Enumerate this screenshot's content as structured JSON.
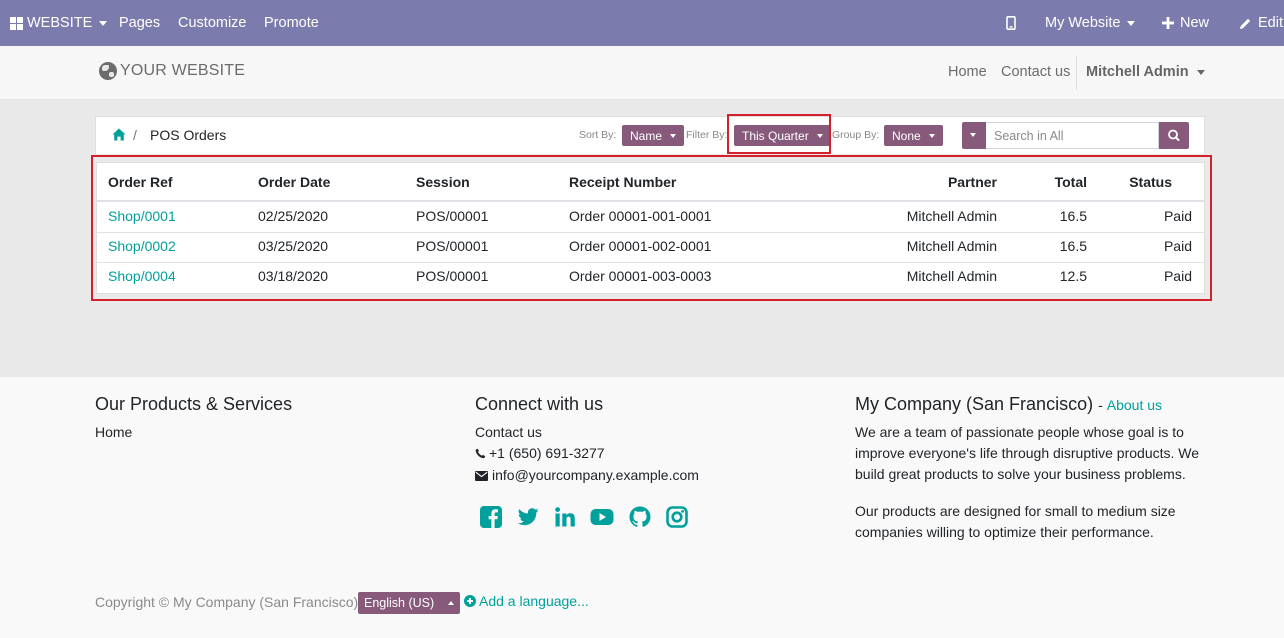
{
  "topbar": {
    "website_label": "WEBSITE",
    "pages": "Pages",
    "customize": "Customize",
    "promote": "Promote",
    "my_website": "My Website",
    "new": "New",
    "edit": "Edit",
    "bg_color": "#7c7bad"
  },
  "header": {
    "logo_text": "YOUR WEBSITE",
    "nav": {
      "home": "Home",
      "contact": "Contact us"
    },
    "user": "Mitchell Admin"
  },
  "controls": {
    "breadcrumb": {
      "current": "POS Orders"
    },
    "sort": {
      "label": "Sort By:",
      "value": "Name"
    },
    "filter": {
      "label": "Filter By:",
      "value": "This Quarter"
    },
    "group": {
      "label": "Group By:",
      "value": "None"
    },
    "search": {
      "placeholder": "Search in All"
    },
    "accent_color": "#875a7b",
    "highlight_color": "#d3202a"
  },
  "table": {
    "columns": [
      "Order Ref",
      "Order Date",
      "Session",
      "Receipt Number",
      "Partner",
      "Total",
      "Status"
    ],
    "rows": [
      [
        "Shop/0001",
        "02/25/2020",
        "POS/00001",
        "Order 00001-001-0001",
        "Mitchell Admin",
        "16.5",
        "Paid"
      ],
      [
        "Shop/0002",
        "03/25/2020",
        "POS/00001",
        "Order 00001-002-0001",
        "Mitchell Admin",
        "16.5",
        "Paid"
      ],
      [
        "Shop/0004",
        "03/18/2020",
        "POS/00001",
        "Order 00001-003-0003",
        "Mitchell Admin",
        "12.5",
        "Paid"
      ]
    ]
  },
  "footer": {
    "col1": {
      "title": "Our Products & Services",
      "home": "Home"
    },
    "col2": {
      "title": "Connect with us",
      "contact": "Contact us",
      "phone": "+1 (650) 691-3277",
      "email": "info@yourcompany.example.com",
      "social_icons": [
        "facebook-icon",
        "twitter-icon",
        "linkedin-icon",
        "youtube-icon",
        "github-icon",
        "instagram-icon"
      ]
    },
    "col3": {
      "title": "My Company (San Francisco)",
      "title_sep": "-",
      "about": "About us",
      "para1": "We are a team of passionate people whose goal is to improve everyone's life through disruptive products. We build great products to solve your business problems.",
      "para2": "Our products are designed for small to medium size companies willing to optimize their performance."
    },
    "copyright": "Copyright © My Company (San Francisco)",
    "language": "English (US)",
    "add_language": "Add a language..."
  }
}
